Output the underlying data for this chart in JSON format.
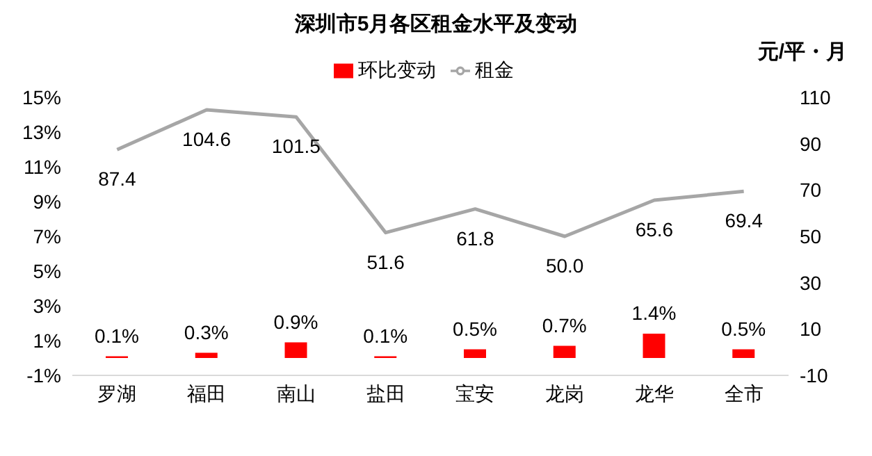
{
  "chart_data": {
    "type": "bar",
    "title": "深圳市5月各区租金水平及变动",
    "y2label": "元/平・月",
    "categories": [
      "罗湖",
      "福田",
      "南山",
      "盐田",
      "宝安",
      "龙岗",
      "龙华",
      "全市"
    ],
    "series": [
      {
        "name": "环比变动",
        "color": "#ff0000",
        "values": [
          0.1,
          0.3,
          0.9,
          0.1,
          0.5,
          0.7,
          1.4,
          0.5
        ],
        "value_labels": [
          "0.1%",
          "0.3%",
          "0.9%",
          "0.1%",
          "0.5%",
          "0.7%",
          "1.4%",
          "0.5%"
        ]
      },
      {
        "name": "租金",
        "type": "line",
        "axis": "y2",
        "color": "#a6a6a6",
        "values": [
          87.4,
          104.6,
          101.5,
          51.6,
          61.8,
          50.0,
          65.6,
          69.4
        ],
        "value_labels": [
          "87.4",
          "104.6",
          "101.5",
          "51.6",
          "61.8",
          "50.0",
          "65.6",
          "69.4"
        ]
      }
    ],
    "ylim": [
      -1,
      15
    ],
    "yticks": [
      {
        "value": -1,
        "label": "-1%"
      },
      {
        "value": 1,
        "label": "1%"
      },
      {
        "value": 3,
        "label": "3%"
      },
      {
        "value": 5,
        "label": "5%"
      },
      {
        "value": 7,
        "label": "7%"
      },
      {
        "value": 9,
        "label": "9%"
      },
      {
        "value": 11,
        "label": "11%"
      },
      {
        "value": 13,
        "label": "13%"
      },
      {
        "value": 15,
        "label": "15%"
      }
    ],
    "y2lim": [
      -10,
      110
    ],
    "y2ticks": [
      -10,
      10,
      30,
      50,
      70,
      90,
      110
    ],
    "grid": false,
    "legend": "top",
    "marker": "none",
    "line_style": "solid"
  }
}
